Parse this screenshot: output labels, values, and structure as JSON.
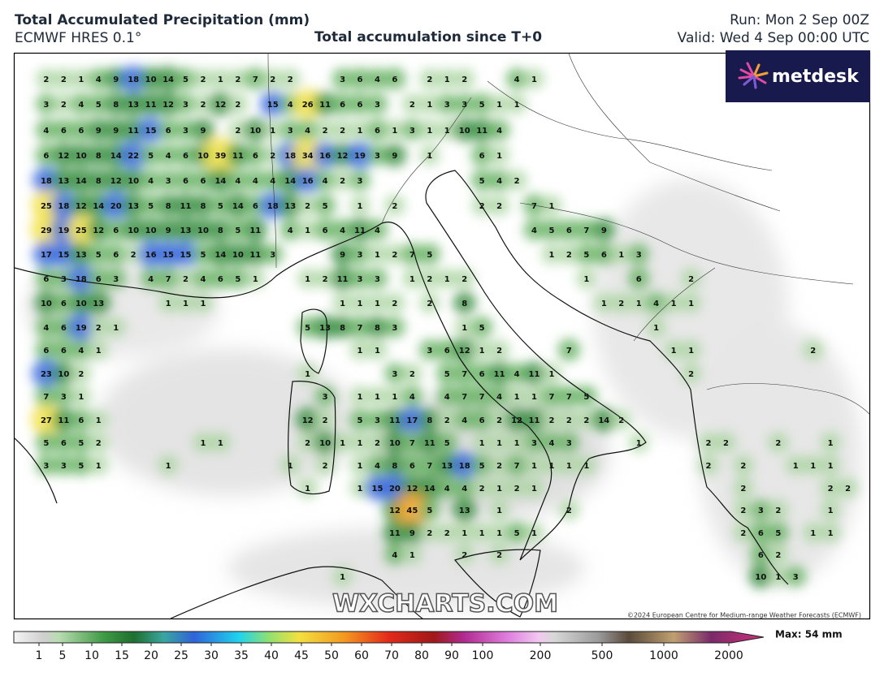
{
  "header": {
    "title": "Total Accumulated Precipitation (mm)",
    "model": "ECMWF HRES 0.1°",
    "subtitle": "Total accumulation since T+0",
    "run": "Run: Mon 2 Sep 00Z",
    "valid": "Valid: Wed 4 Sep 00:00 UTC"
  },
  "logo": "metdesk",
  "watermark": "WXCHARTS.COM",
  "copyright": "©2024 European Centre for Medium-range Weather Forecasts (ECMWF)",
  "map": {
    "accumulation_rows": [
      [
        null,
        null,
        2,
        2,
        1,
        4,
        9,
        18,
        10,
        14,
        5,
        2,
        1,
        2,
        7,
        2,
        2,
        null,
        null,
        3,
        6,
        4,
        6,
        null,
        2,
        1,
        2,
        null,
        null,
        4,
        1
      ],
      [
        null,
        null,
        3,
        2,
        4,
        5,
        8,
        13,
        11,
        12,
        3,
        2,
        12,
        2,
        null,
        15,
        4,
        26,
        11,
        6,
        6,
        3,
        null,
        2,
        1,
        3,
        3,
        5,
        1,
        1
      ],
      [
        null,
        null,
        4,
        6,
        6,
        9,
        9,
        11,
        15,
        6,
        3,
        9,
        null,
        2,
        10,
        1,
        3,
        4,
        2,
        2,
        1,
        6,
        1,
        3,
        1,
        1,
        10,
        11,
        4
      ],
      [
        null,
        null,
        6,
        12,
        10,
        8,
        14,
        22,
        5,
        4,
        6,
        10,
        39,
        11,
        6,
        2,
        18,
        34,
        16,
        12,
        19,
        3,
        9,
        null,
        1,
        null,
        null,
        6,
        1
      ],
      [
        null,
        null,
        18,
        13,
        14,
        8,
        12,
        10,
        4,
        3,
        6,
        6,
        14,
        4,
        4,
        4,
        14,
        16,
        4,
        2,
        3,
        null,
        null,
        null,
        null,
        null,
        null,
        5,
        4,
        2
      ],
      [
        null,
        null,
        25,
        18,
        12,
        14,
        20,
        13,
        5,
        8,
        11,
        8,
        5,
        14,
        6,
        18,
        13,
        2,
        5,
        null,
        1,
        null,
        2,
        null,
        null,
        null,
        null,
        2,
        2,
        null,
        7,
        1
      ],
      [
        null,
        null,
        29,
        19,
        25,
        12,
        6,
        10,
        10,
        9,
        13,
        10,
        8,
        5,
        11,
        null,
        4,
        1,
        6,
        4,
        11,
        4,
        null,
        null,
        null,
        null,
        null,
        null,
        null,
        null,
        4,
        5,
        6,
        7,
        9
      ],
      [
        null,
        null,
        17,
        15,
        13,
        5,
        6,
        2,
        16,
        15,
        15,
        5,
        14,
        10,
        11,
        3,
        null,
        null,
        null,
        9,
        3,
        1,
        2,
        7,
        5,
        null,
        null,
        null,
        null,
        null,
        null,
        1,
        2,
        5,
        6,
        1,
        3
      ],
      [
        null,
        null,
        6,
        3,
        18,
        6,
        3,
        null,
        4,
        7,
        2,
        4,
        6,
        5,
        1,
        null,
        null,
        1,
        2,
        11,
        3,
        3,
        null,
        1,
        2,
        1,
        2,
        null,
        null,
        null,
        null,
        null,
        null,
        1,
        null,
        null,
        6,
        null,
        null,
        2
      ],
      [
        null,
        null,
        10,
        6,
        10,
        13,
        null,
        null,
        null,
        1,
        1,
        1,
        null,
        null,
        null,
        null,
        null,
        null,
        null,
        1,
        1,
        1,
        2,
        null,
        2,
        null,
        8,
        null,
        null,
        null,
        null,
        null,
        null,
        null,
        1,
        2,
        1,
        4,
        1,
        1
      ],
      [
        null,
        null,
        4,
        6,
        19,
        2,
        1,
        null,
        null,
        null,
        null,
        null,
        null,
        null,
        null,
        null,
        null,
        5,
        13,
        8,
        7,
        8,
        3,
        null,
        null,
        null,
        1,
        5,
        null,
        null,
        null,
        null,
        null,
        null,
        null,
        null,
        null,
        1
      ],
      [
        null,
        null,
        6,
        6,
        4,
        1,
        null,
        null,
        null,
        null,
        null,
        null,
        null,
        null,
        null,
        null,
        null,
        null,
        null,
        null,
        1,
        1,
        null,
        null,
        3,
        6,
        12,
        1,
        2,
        null,
        null,
        null,
        7,
        null,
        null,
        null,
        null,
        null,
        1,
        1,
        null,
        null,
        null,
        null,
        null,
        null,
        2
      ],
      [
        null,
        null,
        23,
        10,
        2,
        null,
        null,
        null,
        null,
        null,
        null,
        null,
        null,
        null,
        null,
        null,
        null,
        1,
        null,
        null,
        null,
        null,
        3,
        2,
        null,
        5,
        7,
        6,
        11,
        4,
        11,
        1,
        null,
        null,
        null,
        null,
        null,
        null,
        null,
        2
      ],
      [
        null,
        null,
        7,
        3,
        1,
        null,
        null,
        null,
        null,
        null,
        null,
        null,
        null,
        null,
        null,
        null,
        null,
        null,
        3,
        null,
        1,
        1,
        1,
        4,
        null,
        4,
        7,
        7,
        4,
        1,
        1,
        7,
        7,
        5
      ],
      [
        null,
        null,
        27,
        11,
        6,
        1,
        null,
        null,
        null,
        null,
        null,
        null,
        null,
        null,
        null,
        null,
        null,
        12,
        2,
        null,
        5,
        3,
        11,
        17,
        8,
        2,
        4,
        6,
        2,
        12,
        11,
        2,
        2,
        2,
        14,
        2
      ],
      [
        null,
        null,
        5,
        6,
        5,
        2,
        null,
        null,
        null,
        null,
        null,
        1,
        1,
        null,
        null,
        null,
        null,
        2,
        10,
        1,
        1,
        2,
        10,
        7,
        11,
        5,
        null,
        1,
        1,
        1,
        3,
        4,
        3,
        null,
        null,
        null,
        1,
        null,
        null,
        null,
        2,
        2,
        null,
        null,
        2,
        null,
        null,
        1
      ],
      [
        null,
        null,
        3,
        3,
        5,
        1,
        null,
        null,
        null,
        1,
        null,
        null,
        null,
        null,
        null,
        null,
        1,
        null,
        2,
        null,
        1,
        4,
        8,
        6,
        7,
        13,
        18,
        5,
        2,
        7,
        1,
        1,
        1,
        1,
        null,
        null,
        null,
        null,
        null,
        null,
        2,
        null,
        2,
        null,
        null,
        1,
        1,
        1
      ],
      [
        null,
        null,
        null,
        null,
        null,
        null,
        null,
        null,
        null,
        null,
        null,
        null,
        null,
        null,
        null,
        null,
        null,
        1,
        null,
        null,
        1,
        15,
        20,
        12,
        14,
        4,
        4,
        2,
        1,
        2,
        1,
        null,
        null,
        null,
        null,
        null,
        null,
        null,
        null,
        null,
        null,
        null,
        2,
        null,
        null,
        null,
        null,
        2,
        2
      ],
      [
        null,
        null,
        null,
        null,
        null,
        null,
        null,
        null,
        null,
        null,
        null,
        null,
        null,
        null,
        null,
        null,
        null,
        null,
        null,
        null,
        null,
        null,
        12,
        45,
        5,
        null,
        13,
        null,
        1,
        null,
        null,
        null,
        2,
        null,
        null,
        null,
        null,
        null,
        null,
        null,
        null,
        null,
        2,
        3,
        2,
        null,
        null,
        1
      ],
      [
        null,
        null,
        null,
        null,
        null,
        null,
        null,
        null,
        null,
        null,
        null,
        null,
        null,
        null,
        null,
        null,
        null,
        null,
        null,
        null,
        null,
        null,
        11,
        9,
        2,
        2,
        1,
        1,
        1,
        5,
        1,
        null,
        null,
        null,
        null,
        null,
        null,
        null,
        null,
        null,
        null,
        null,
        2,
        6,
        5,
        null,
        1,
        1
      ],
      [
        null,
        null,
        null,
        null,
        null,
        null,
        null,
        null,
        null,
        null,
        null,
        null,
        null,
        null,
        null,
        null,
        null,
        null,
        null,
        null,
        null,
        null,
        4,
        1,
        null,
        null,
        2,
        null,
        2,
        null,
        null,
        null,
        null,
        null,
        null,
        null,
        null,
        null,
        null,
        null,
        null,
        null,
        null,
        6,
        2
      ],
      [
        null,
        null,
        null,
        null,
        null,
        null,
        null,
        null,
        null,
        null,
        null,
        null,
        null,
        null,
        null,
        null,
        null,
        null,
        null,
        1,
        null,
        null,
        null,
        null,
        null,
        null,
        null,
        null,
        null,
        null,
        null,
        null,
        null,
        null,
        null,
        null,
        null,
        null,
        null,
        null,
        null,
        null,
        null,
        10,
        1,
        3
      ]
    ]
  },
  "colorbar": {
    "ticks": [
      1,
      5,
      10,
      15,
      20,
      25,
      30,
      35,
      40,
      45,
      50,
      60,
      70,
      80,
      90,
      100,
      200,
      500,
      1000,
      2000
    ],
    "max_label": "Max: 54 mm"
  }
}
